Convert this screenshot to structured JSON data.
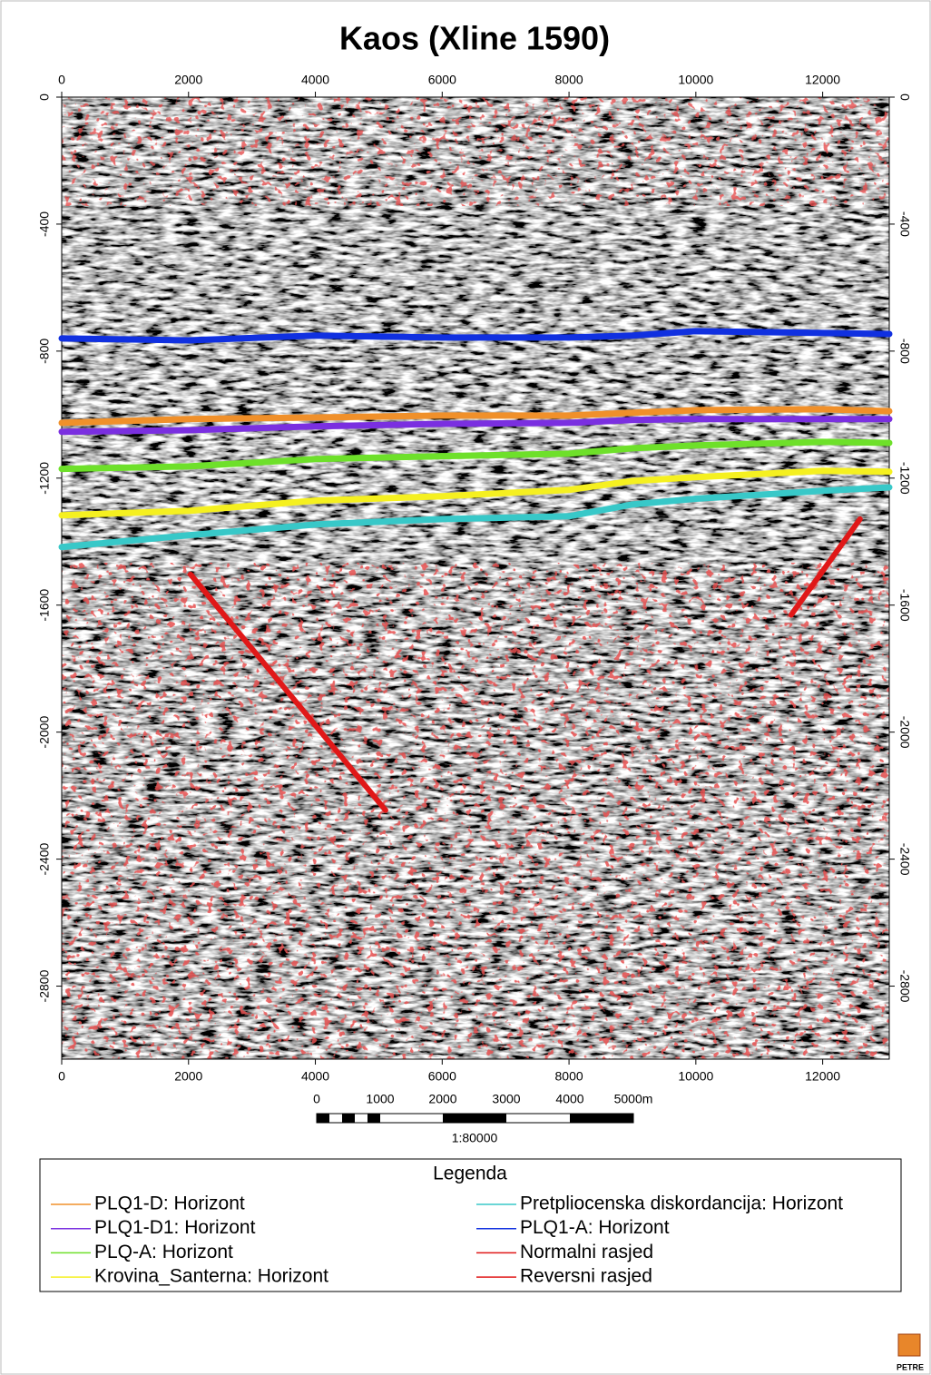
{
  "chart_data": {
    "type": "line",
    "title": "Kaos (Xline 1590)",
    "xlim": [
      0,
      13050
    ],
    "ylim": [
      -3030,
      0
    ],
    "xticks": [
      0,
      2000,
      4000,
      6000,
      8000,
      10000,
      12000
    ],
    "yticks": [
      0,
      -400,
      -800,
      -1200,
      -1600,
      -2000,
      -2400,
      -2800
    ],
    "legend_title": "Legenda",
    "legend_position": "bottom",
    "series": [
      {
        "name": "PLQ1-D: Horizont",
        "color": "#f0902a",
        "x": [
          0,
          2000,
          4000,
          6000,
          8000,
          9000,
          10000,
          12000,
          13050
        ],
        "values": [
          -1026,
          -1014,
          -1009,
          -1003,
          -1003,
          -994,
          -986,
          -983,
          -989
        ]
      },
      {
        "name": "PLQ1-D1: Horizont",
        "color": "#7a2fe0",
        "x": [
          0,
          2000,
          4000,
          6000,
          8000,
          9000,
          10000,
          12000,
          13050
        ],
        "values": [
          -1054,
          -1049,
          -1037,
          -1029,
          -1026,
          -1017,
          -1014,
          -1014,
          -1014
        ]
      },
      {
        "name": "PLQ-A: Horizont",
        "color": "#6ee02a",
        "x": [
          0,
          2000,
          4000,
          6000,
          8000,
          9000,
          10000,
          12000,
          13050
        ],
        "values": [
          -1171,
          -1163,
          -1140,
          -1131,
          -1123,
          -1106,
          -1097,
          -1086,
          -1089
        ]
      },
      {
        "name": "Krovina_Santerna: Horizont",
        "color": "#f5f020",
        "x": [
          0,
          2000,
          4000,
          6000,
          8000,
          9000,
          10000,
          12000,
          13050
        ],
        "values": [
          -1317,
          -1303,
          -1271,
          -1257,
          -1237,
          -1209,
          -1197,
          -1177,
          -1180
        ]
      },
      {
        "name": "Pretpliocenska  diskordancija: Horizont",
        "color": "#38c8c8",
        "x": [
          0,
          2000,
          4000,
          6000,
          8000,
          9000,
          10000,
          12000,
          13050
        ],
        "values": [
          -1417,
          -1380,
          -1346,
          -1329,
          -1320,
          -1283,
          -1265,
          -1240,
          -1229
        ]
      },
      {
        "name": "PLQ1-A: Horizont",
        "color": "#1030e0",
        "x": [
          0,
          2000,
          4000,
          6000,
          8000,
          9000,
          10000,
          12000,
          13050
        ],
        "values": [
          -760,
          -766,
          -751,
          -757,
          -757,
          -751,
          -737,
          -743,
          -746
        ]
      },
      {
        "name": "Normalni rasjed",
        "color": "#e01818",
        "x": [
          2031,
          5107
        ],
        "values": [
          -1503,
          -2246
        ]
      },
      {
        "name": "Reversni rasjed",
        "color": "#e01818",
        "x": [
          11502,
          12589
        ],
        "values": [
          -1631,
          -1329
        ]
      }
    ]
  },
  "scale_bar": {
    "labels": [
      "0",
      "1000",
      "2000",
      "3000",
      "4000",
      "5000m"
    ],
    "scale": "1:80000"
  },
  "logo": "PETRE"
}
